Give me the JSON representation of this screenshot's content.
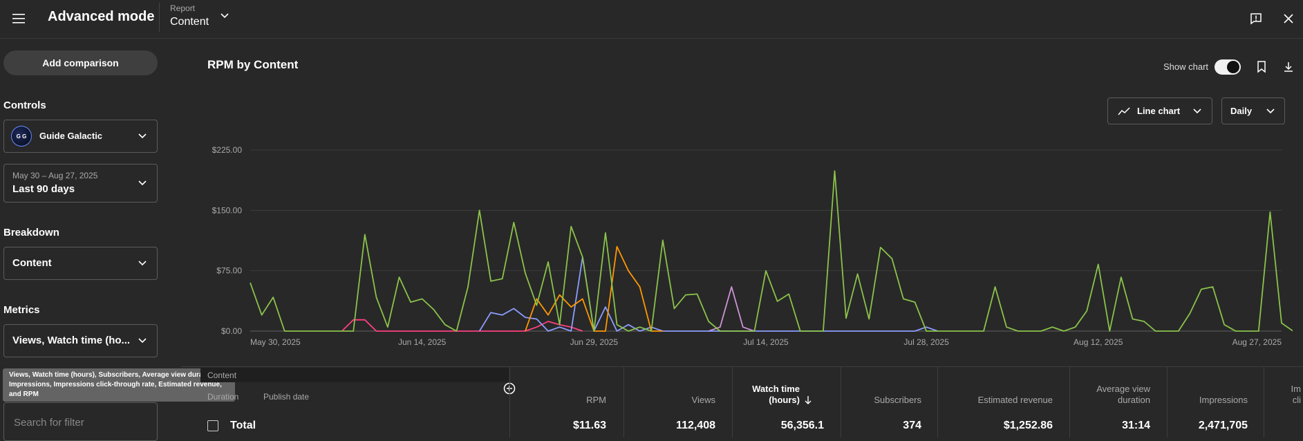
{
  "header": {
    "title": "Advanced mode",
    "report_label": "Report",
    "report_value": "Content"
  },
  "sidebar": {
    "add_comparison": "Add comparison",
    "controls_label": "Controls",
    "channel": "Guide Galactic",
    "channel_avatar_text": "G G",
    "date_range": "May 30 – Aug 27, 2025",
    "date_preset": "Last 90 days",
    "breakdown_label": "Breakdown",
    "breakdown_value": "Content",
    "metrics_label": "Metrics",
    "metrics_value": "Views, Watch time (ho...",
    "tooltip": "Views, Watch time (hours), Subscribers, Average view duration, Impressions, Impressions click-through rate, Estimated revenue, and RPM",
    "search_placeholder": "Search for filter"
  },
  "main": {
    "chart_title": "RPM by Content",
    "show_chart_label": "Show chart",
    "chart_type": "Line chart",
    "granularity": "Daily"
  },
  "chart_data": {
    "type": "line",
    "ylim": [
      0,
      225
    ],
    "yticks": [
      "$225.00",
      "$150.00",
      "$75.00",
      "$0.00"
    ],
    "xticks": [
      "May 30, 2025",
      "Jun 14, 2025",
      "Jun 29, 2025",
      "Jul 14, 2025",
      "Jul 28, 2025",
      "Aug 12, 2025",
      "Aug 27, 2025"
    ],
    "x_start": "2025-05-30",
    "x_end": "2025-08-27",
    "series": [
      {
        "color": "#8bc34a",
        "points": [
          [
            0,
            60
          ],
          [
            1,
            20
          ],
          [
            2,
            42
          ],
          [
            3,
            0
          ],
          [
            4,
            0
          ],
          [
            5,
            0
          ],
          [
            6,
            0
          ],
          [
            7,
            0
          ],
          [
            8,
            0
          ],
          [
            9,
            0
          ],
          [
            10,
            120
          ],
          [
            11,
            42
          ],
          [
            12,
            5
          ],
          [
            13,
            67
          ],
          [
            14,
            36
          ],
          [
            15,
            40
          ],
          [
            16,
            27
          ],
          [
            17,
            8
          ],
          [
            18,
            0
          ],
          [
            19,
            55
          ],
          [
            20,
            150
          ],
          [
            21,
            62
          ],
          [
            22,
            65
          ],
          [
            23,
            135
          ],
          [
            24,
            72
          ],
          [
            25,
            32
          ],
          [
            26,
            86
          ],
          [
            27,
            8
          ],
          [
            28,
            130
          ],
          [
            29,
            92
          ],
          [
            30,
            0
          ],
          [
            31,
            122
          ],
          [
            32,
            8
          ],
          [
            33,
            0
          ],
          [
            34,
            5
          ],
          [
            35,
            0
          ],
          [
            36,
            113
          ],
          [
            37,
            28
          ],
          [
            38,
            45
          ],
          [
            39,
            46
          ],
          [
            40,
            12
          ],
          [
            41,
            0
          ],
          [
            42,
            0
          ],
          [
            43,
            0
          ],
          [
            44,
            0
          ],
          [
            45,
            75
          ],
          [
            46,
            37
          ],
          [
            47,
            46
          ],
          [
            48,
            0
          ],
          [
            49,
            0
          ],
          [
            50,
            0
          ],
          [
            51,
            199
          ],
          [
            52,
            16
          ],
          [
            53,
            71
          ],
          [
            54,
            15
          ],
          [
            55,
            104
          ],
          [
            56,
            90
          ],
          [
            57,
            40
          ],
          [
            58,
            36
          ],
          [
            59,
            0
          ],
          [
            60,
            0
          ],
          [
            61,
            0
          ],
          [
            62,
            0
          ],
          [
            63,
            0
          ],
          [
            64,
            0
          ],
          [
            65,
            55
          ],
          [
            66,
            5
          ],
          [
            67,
            0
          ],
          [
            68,
            0
          ],
          [
            69,
            0
          ],
          [
            70,
            5
          ],
          [
            71,
            0
          ],
          [
            72,
            5
          ],
          [
            73,
            25
          ],
          [
            74,
            83
          ],
          [
            75,
            0
          ],
          [
            76,
            67
          ],
          [
            77,
            15
          ],
          [
            78,
            12
          ],
          [
            79,
            0
          ],
          [
            80,
            0
          ],
          [
            81,
            0
          ],
          [
            82,
            22
          ],
          [
            83,
            52
          ],
          [
            84,
            55
          ],
          [
            85,
            8
          ],
          [
            86,
            0
          ],
          [
            87,
            0
          ],
          [
            88,
            0
          ],
          [
            89,
            148
          ],
          [
            90,
            10
          ],
          [
            91,
            0
          ]
        ]
      },
      {
        "color": "#ff9800",
        "points": [
          [
            24,
            0
          ],
          [
            25,
            40
          ],
          [
            26,
            20
          ],
          [
            27,
            45
          ],
          [
            28,
            30
          ],
          [
            29,
            40
          ],
          [
            30,
            0
          ],
          [
            31,
            0
          ],
          [
            32,
            105
          ],
          [
            33,
            75
          ],
          [
            34,
            55
          ],
          [
            35,
            0
          ],
          [
            36,
            0
          ]
        ]
      },
      {
        "color": "#8c9eff",
        "points": [
          [
            20,
            0
          ],
          [
            21,
            23
          ],
          [
            22,
            20
          ],
          [
            23,
            28
          ],
          [
            24,
            17
          ],
          [
            25,
            15
          ],
          [
            26,
            0
          ],
          [
            27,
            5
          ],
          [
            28,
            0
          ],
          [
            29,
            92
          ],
          [
            30,
            0
          ],
          [
            31,
            30
          ],
          [
            32,
            0
          ],
          [
            33,
            8
          ],
          [
            34,
            0
          ],
          [
            35,
            5
          ],
          [
            36,
            0
          ],
          [
            58,
            0
          ],
          [
            59,
            5
          ],
          [
            60,
            0
          ]
        ]
      },
      {
        "color": "#ff4081",
        "points": [
          [
            8,
            0
          ],
          [
            9,
            14
          ],
          [
            10,
            14
          ],
          [
            11,
            0
          ],
          [
            24,
            0
          ],
          [
            25,
            5
          ],
          [
            26,
            12
          ],
          [
            27,
            8
          ],
          [
            28,
            5
          ],
          [
            29,
            0
          ]
        ]
      },
      {
        "color": "#ce93d8",
        "points": [
          [
            40,
            0
          ],
          [
            41,
            5
          ],
          [
            42,
            55
          ],
          [
            43,
            5
          ],
          [
            44,
            0
          ]
        ]
      }
    ]
  },
  "table": {
    "content_header": "Content",
    "duration_header": "Duration",
    "publish_header": "Publish date",
    "columns": [
      {
        "label": "RPM",
        "total": "$11.63"
      },
      {
        "label": "Views",
        "total": "112,408"
      },
      {
        "label": "Watch time (hours)",
        "total": "56,356.1"
      },
      {
        "label": "Subscribers",
        "total": "374"
      },
      {
        "label": "Estimated revenue",
        "total": "$1,252.86"
      },
      {
        "label": "Average view duration",
        "total": "31:14"
      },
      {
        "label": "Impressions",
        "total": "2,471,705"
      }
    ],
    "total_label": "Total",
    "partial_header": "Im cli"
  }
}
